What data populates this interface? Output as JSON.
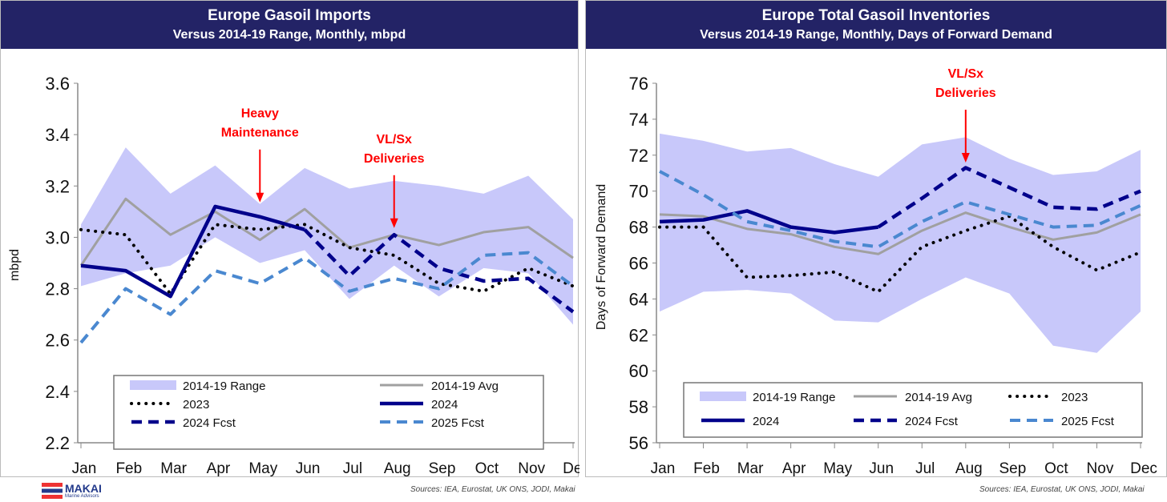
{
  "chart_data": [
    {
      "type": "line",
      "title": "Europe Gasoil Imports",
      "subtitle": "Versus 2014-19 Range, Monthly, mbpd",
      "ylabel": "mbpd",
      "xlabel": "",
      "ylim": [
        2.2,
        3.6
      ],
      "yticks": [
        "2.2",
        "2.4",
        "2.6",
        "2.8",
        "3.0",
        "3.2",
        "3.4",
        "3.6"
      ],
      "categories": [
        "Jan",
        "Feb",
        "Mar",
        "Apr",
        "May",
        "Jun",
        "Jul",
        "Aug",
        "Sep",
        "Oct",
        "Nov",
        "Dec"
      ],
      "range": {
        "name": "2014-19 Range",
        "upper": [
          3.05,
          3.35,
          3.17,
          3.28,
          3.13,
          3.27,
          3.19,
          3.22,
          3.2,
          3.17,
          3.24,
          3.07
        ],
        "lower": [
          2.81,
          2.86,
          2.89,
          3.0,
          2.9,
          2.95,
          2.76,
          2.89,
          2.77,
          2.88,
          2.86,
          2.66
        ]
      },
      "series": [
        {
          "name": "2014-19 Avg",
          "style": "avg",
          "values": [
            2.89,
            3.15,
            3.01,
            3.1,
            2.99,
            3.11,
            2.96,
            3.01,
            2.97,
            3.02,
            3.04,
            2.92
          ]
        },
        {
          "name": "2023",
          "style": "dot",
          "values": [
            3.03,
            3.01,
            2.78,
            3.05,
            3.03,
            3.05,
            2.96,
            2.93,
            2.82,
            2.79,
            2.88,
            2.81
          ]
        },
        {
          "name": "2024",
          "style": "solid",
          "values": [
            2.89,
            2.87,
            2.77,
            3.12,
            3.08,
            3.03,
            null,
            null,
            null,
            null,
            null,
            null
          ]
        },
        {
          "name": "2024 Fcst",
          "style": "dash",
          "values": [
            null,
            null,
            null,
            null,
            null,
            3.03,
            2.85,
            3.01,
            2.88,
            2.83,
            2.84,
            2.71
          ]
        },
        {
          "name": "2025 Fcst",
          "style": "ldash",
          "values": [
            2.59,
            2.8,
            2.7,
            2.87,
            2.82,
            2.92,
            2.79,
            2.84,
            2.8,
            2.93,
            2.94,
            2.81
          ]
        }
      ],
      "annotations": [
        {
          "text": [
            "Heavy",
            "Maintenance"
          ],
          "month": "May",
          "value": 3.13
        },
        {
          "text": [
            "VL/Sx",
            "Deliveries"
          ],
          "month": "Aug",
          "value": 3.03
        }
      ],
      "legend": "bottom",
      "legend_cols": 2,
      "source": "Sources: IEA, Eurostat, UK ONS, JODI, Makai"
    },
    {
      "type": "line",
      "title": "Europe Total Gasoil Inventories",
      "subtitle": "Versus 2014-19 Range, Monthly, Days of Forward Demand",
      "ylabel": "Days of Forward Demand",
      "xlabel": "",
      "ylim": [
        56,
        76
      ],
      "yticks": [
        "56",
        "58",
        "60",
        "62",
        "64",
        "66",
        "68",
        "70",
        "72",
        "74",
        "76"
      ],
      "categories": [
        "Jan",
        "Feb",
        "Mar",
        "Apr",
        "May",
        "Jun",
        "Jul",
        "Aug",
        "Sep",
        "Oct",
        "Nov",
        "Dec"
      ],
      "range": {
        "name": "2014-19 Range",
        "upper": [
          73.2,
          72.8,
          72.2,
          72.4,
          71.5,
          70.8,
          72.6,
          73.0,
          71.8,
          70.9,
          71.1,
          72.3
        ],
        "lower": [
          63.3,
          64.4,
          64.5,
          64.3,
          62.8,
          62.7,
          64.0,
          65.2,
          64.3,
          61.4,
          61.0,
          63.3
        ]
      },
      "series": [
        {
          "name": "2014-19 Avg",
          "style": "avg",
          "values": [
            68.7,
            68.6,
            67.9,
            67.6,
            66.9,
            66.5,
            67.8,
            68.8,
            68.0,
            67.3,
            67.7,
            68.7
          ]
        },
        {
          "name": "2023",
          "style": "dot",
          "values": [
            68.0,
            68.0,
            65.2,
            65.3,
            65.5,
            64.4,
            66.9,
            67.8,
            68.6,
            66.9,
            65.6,
            66.6
          ]
        },
        {
          "name": "2024",
          "style": "solid",
          "values": [
            68.3,
            68.4,
            68.9,
            68.0,
            67.7,
            68.0,
            null,
            null,
            null,
            null,
            null,
            null
          ]
        },
        {
          "name": "2024 Fcst",
          "style": "dash",
          "values": [
            null,
            null,
            null,
            null,
            null,
            68.0,
            69.6,
            71.3,
            70.2,
            69.1,
            69.0,
            70.0
          ]
        },
        {
          "name": "2025 Fcst",
          "style": "ldash",
          "values": [
            71.1,
            69.8,
            68.3,
            67.8,
            67.2,
            66.9,
            68.3,
            69.4,
            68.7,
            68.0,
            68.1,
            69.2
          ]
        }
      ],
      "annotations": [
        {
          "text": [
            "VL/Sx",
            "Deliveries"
          ],
          "month": "Aug",
          "value": 71.5
        }
      ],
      "legend": "bottom",
      "legend_cols": 3,
      "source": "Sources: IEA, Eurostat, UK ONS, JODI, Makai"
    }
  ],
  "logo": {
    "name": "MAKAI",
    "tagline": "Marine Advisors"
  },
  "colors": {
    "header": "#232366",
    "range": "#c8c8fa",
    "avg": "#a0a0a0",
    "dot": "#000000",
    "solid": "#00008b",
    "dash": "#00008b",
    "ldash": "#4a88d0",
    "annotation": "#ff0000"
  }
}
